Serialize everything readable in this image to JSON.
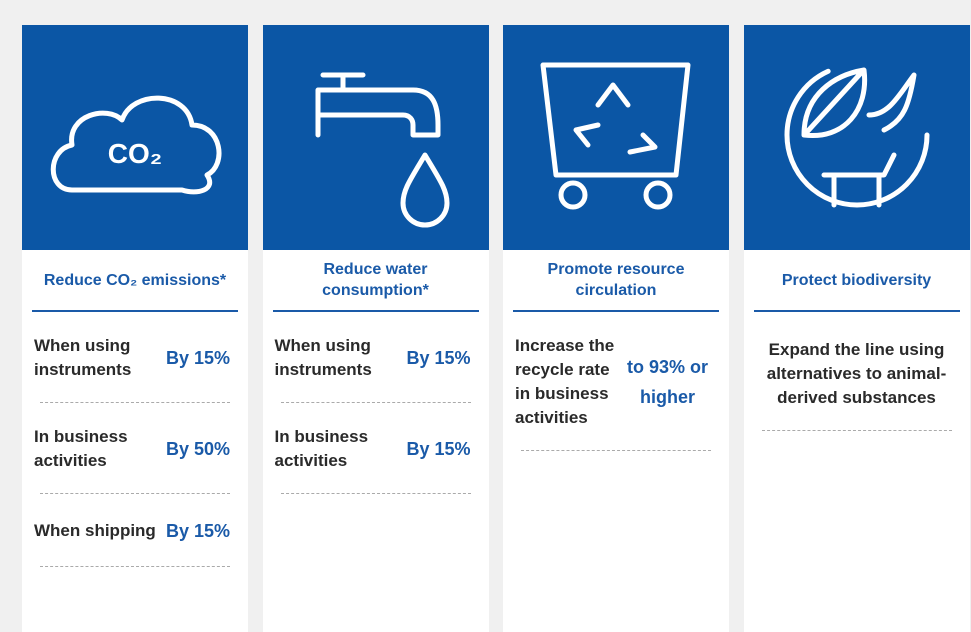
{
  "columns": [
    {
      "icon_text": "CO₂",
      "title": "Reduce CO₂ emissions*",
      "items": [
        {
          "label": "When using instruments",
          "value": "By 15%"
        },
        {
          "label": "In business activities",
          "value": "By 50%"
        },
        {
          "label": "When shipping",
          "value": "By 15%"
        }
      ]
    },
    {
      "title": "Reduce water consumption*",
      "items": [
        {
          "label": "When using instruments",
          "value": "By 15%"
        },
        {
          "label": "In business activities",
          "value": "By 15%"
        }
      ]
    },
    {
      "title": "Promote resource circulation",
      "items": [
        {
          "label": "Increase the recycle rate in business activities",
          "value": "to 93% or higher"
        }
      ]
    },
    {
      "title": "Protect biodiversity",
      "text": "Expand the line using alternatives to animal-derived substances"
    }
  ]
}
